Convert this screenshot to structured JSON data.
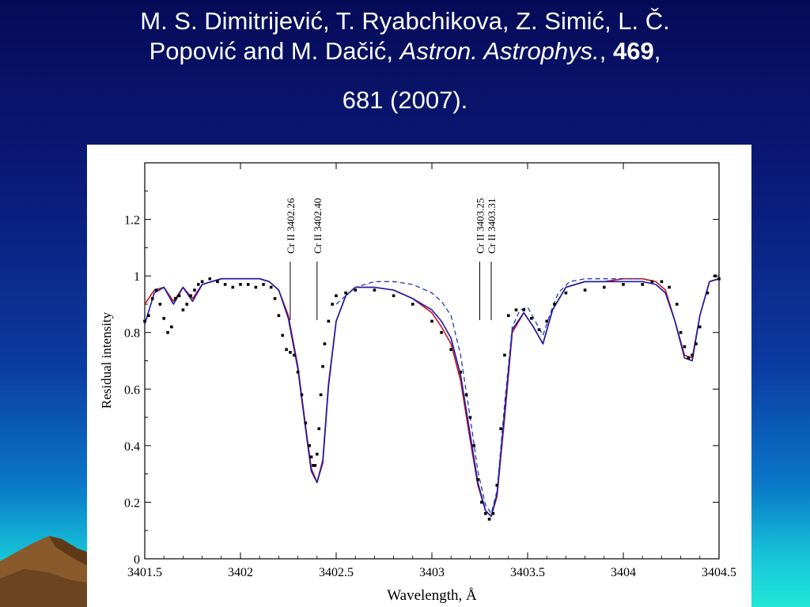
{
  "slide": {
    "title_line1": "M. S. Dimitrijević, T. Ryabchikova, Z. Simić, L. Č.",
    "title_line2_authors": "Popović and  M. Dačić,",
    "journal": "Astron. Astrophys.",
    "journal_after": ", ",
    "volume": "469",
    "volume_after": ",",
    "title_line3": "681 (2007)."
  },
  "colors": {
    "background_top": "#060b58",
    "background_bottom": "#22e6d6",
    "observed": "#000000",
    "model_red": "#c8141e",
    "model_blue": "#1a1aa8",
    "model_blue_dashed": "#1c3cb4"
  },
  "chart_data": {
    "type": "line",
    "xlabel": "Wavelength, Å",
    "ylabel": "Residual intensity",
    "xlim": [
      3401.5,
      3404.5
    ],
    "ylim": [
      0,
      1.4
    ],
    "xticks": [
      3401.5,
      3402,
      3402.5,
      3403,
      3403.5,
      3404,
      3404.5
    ],
    "xtick_labels": [
      "3401.5",
      "3402",
      "3402.5",
      "3403",
      "3403.5",
      "3404",
      "3404.5"
    ],
    "yticks": [
      0,
      0.2,
      0.4,
      0.6,
      0.8,
      1,
      1.2
    ],
    "ytick_labels": [
      "0",
      "0.2",
      "0.4",
      "0.6",
      "0.8",
      "1",
      "1.2"
    ],
    "grid": false,
    "line_markers": [
      {
        "label": "Cr II 3402.26",
        "x": 3402.26
      },
      {
        "label": "Cr II 3402.40",
        "x": 3402.4
      },
      {
        "label": "Cr II 3403.25",
        "x": 3403.25
      },
      {
        "label": "Cr II 3403.31",
        "x": 3403.31
      }
    ],
    "series": [
      {
        "style": "points",
        "color": "#000000",
        "x": [
          3401.5,
          3401.52,
          3401.54,
          3401.56,
          3401.58,
          3401.6,
          3401.62,
          3401.64,
          3401.66,
          3401.68,
          3401.7,
          3401.72,
          3401.74,
          3401.76,
          3401.78,
          3401.8,
          3401.84,
          3401.88,
          3401.92,
          3401.96,
          3402.0,
          3402.04,
          3402.08,
          3402.12,
          3402.16,
          3402.18,
          3402.2,
          3402.22,
          3402.24,
          3402.26,
          3402.28,
          3402.3,
          3402.32,
          3402.34,
          3402.36,
          3402.37,
          3402.38,
          3402.39,
          3402.4,
          3402.41,
          3402.42,
          3402.43,
          3402.44,
          3402.46,
          3402.48,
          3402.5,
          3402.55,
          3402.6,
          3402.7,
          3402.8,
          3402.9,
          3403.0,
          3403.05,
          3403.1,
          3403.15,
          3403.18,
          3403.2,
          3403.22,
          3403.24,
          3403.26,
          3403.28,
          3403.3,
          3403.32,
          3403.34,
          3403.36,
          3403.38,
          3403.4,
          3403.44,
          3403.48,
          3403.52,
          3403.56,
          3403.6,
          3403.64,
          3403.7,
          3403.8,
          3403.9,
          3404.0,
          3404.1,
          3404.15,
          3404.2,
          3404.24,
          3404.28,
          3404.3,
          3404.32,
          3404.34,
          3404.36,
          3404.38,
          3404.4,
          3404.44,
          3404.48,
          3404.5
        ],
        "values": [
          0.84,
          0.86,
          0.92,
          0.95,
          0.9,
          0.85,
          0.8,
          0.82,
          0.92,
          0.93,
          0.88,
          0.9,
          0.93,
          0.95,
          0.97,
          0.98,
          0.99,
          0.98,
          0.97,
          0.96,
          0.97,
          0.97,
          0.96,
          0.97,
          0.96,
          0.92,
          0.86,
          0.79,
          0.74,
          0.73,
          0.72,
          0.66,
          0.58,
          0.48,
          0.4,
          0.36,
          0.33,
          0.33,
          0.37,
          0.46,
          0.58,
          0.68,
          0.76,
          0.84,
          0.9,
          0.93,
          0.94,
          0.95,
          0.95,
          0.93,
          0.9,
          0.84,
          0.8,
          0.74,
          0.66,
          0.58,
          0.5,
          0.4,
          0.28,
          0.2,
          0.16,
          0.14,
          0.16,
          0.26,
          0.46,
          0.72,
          0.86,
          0.88,
          0.88,
          0.85,
          0.81,
          0.84,
          0.9,
          0.94,
          0.95,
          0.96,
          0.97,
          0.97,
          0.98,
          0.98,
          0.96,
          0.9,
          0.8,
          0.75,
          0.71,
          0.72,
          0.76,
          0.82,
          0.94,
          1.0,
          0.99
        ]
      },
      {
        "style": "solid",
        "color": "#c8141e",
        "x": [
          3401.5,
          3401.55,
          3401.6,
          3401.65,
          3401.7,
          3401.75,
          3401.8,
          3401.9,
          3402.0,
          3402.1,
          3402.15,
          3402.2,
          3402.25,
          3402.3,
          3402.34,
          3402.37,
          3402.4,
          3402.43,
          3402.46,
          3402.5,
          3402.55,
          3402.6,
          3402.7,
          3402.8,
          3402.9,
          3403.0,
          3403.05,
          3403.1,
          3403.15,
          3403.2,
          3403.24,
          3403.28,
          3403.31,
          3403.34,
          3403.38,
          3403.42,
          3403.48,
          3403.53,
          3403.58,
          3403.63,
          3403.7,
          3403.8,
          3403.9,
          3404.0,
          3404.1,
          3404.17,
          3404.22,
          3404.27,
          3404.32,
          3404.36,
          3404.4,
          3404.45,
          3404.5
        ],
        "values": [
          0.9,
          0.95,
          0.96,
          0.91,
          0.96,
          0.92,
          0.97,
          0.99,
          0.99,
          0.99,
          0.98,
          0.95,
          0.86,
          0.68,
          0.47,
          0.32,
          0.27,
          0.35,
          0.62,
          0.84,
          0.93,
          0.96,
          0.96,
          0.95,
          0.92,
          0.87,
          0.82,
          0.76,
          0.63,
          0.42,
          0.26,
          0.17,
          0.15,
          0.22,
          0.5,
          0.8,
          0.87,
          0.82,
          0.76,
          0.88,
          0.96,
          0.98,
          0.98,
          0.99,
          0.99,
          0.98,
          0.95,
          0.84,
          0.72,
          0.71,
          0.86,
          0.98,
          0.99
        ]
      },
      {
        "style": "solid",
        "color": "#1a1aa8",
        "x": [
          3401.5,
          3401.55,
          3401.6,
          3401.65,
          3401.7,
          3401.75,
          3401.8,
          3401.9,
          3402.0,
          3402.1,
          3402.15,
          3402.2,
          3402.25,
          3402.3,
          3402.34,
          3402.37,
          3402.4,
          3402.43,
          3402.46,
          3402.5,
          3402.55,
          3402.6,
          3402.7,
          3402.8,
          3402.9,
          3403.0,
          3403.05,
          3403.1,
          3403.15,
          3403.2,
          3403.24,
          3403.28,
          3403.31,
          3403.34,
          3403.38,
          3403.42,
          3403.48,
          3403.53,
          3403.58,
          3403.63,
          3403.7,
          3403.8,
          3403.9,
          3404.0,
          3404.1,
          3404.17,
          3404.22,
          3404.27,
          3404.32,
          3404.36,
          3404.4,
          3404.45,
          3404.5
        ],
        "values": [
          0.83,
          0.94,
          0.96,
          0.9,
          0.96,
          0.91,
          0.97,
          0.99,
          0.99,
          0.99,
          0.98,
          0.95,
          0.85,
          0.67,
          0.46,
          0.31,
          0.27,
          0.34,
          0.61,
          0.84,
          0.93,
          0.96,
          0.96,
          0.95,
          0.92,
          0.88,
          0.84,
          0.78,
          0.65,
          0.44,
          0.27,
          0.17,
          0.15,
          0.23,
          0.52,
          0.81,
          0.87,
          0.82,
          0.76,
          0.88,
          0.96,
          0.98,
          0.98,
          0.98,
          0.98,
          0.97,
          0.94,
          0.84,
          0.71,
          0.7,
          0.86,
          0.98,
          0.99
        ]
      },
      {
        "style": "dashed",
        "color": "#1c3cb4",
        "x": [
          3402.5,
          3402.6,
          3402.7,
          3402.8,
          3402.9,
          3403.0,
          3403.05,
          3403.1,
          3403.15,
          3403.2,
          3403.24,
          3403.28,
          3403.31,
          3403.34,
          3403.38,
          3403.42,
          3403.46,
          3403.5,
          3403.54,
          3403.58,
          3403.62,
          3403.66,
          3403.72,
          3403.8,
          3403.9,
          3404.0,
          3404.1
        ],
        "values": [
          0.9,
          0.96,
          0.98,
          0.98,
          0.97,
          0.94,
          0.91,
          0.86,
          0.72,
          0.5,
          0.31,
          0.19,
          0.16,
          0.24,
          0.55,
          0.82,
          0.88,
          0.89,
          0.84,
          0.79,
          0.87,
          0.94,
          0.98,
          0.99,
          0.99,
          0.99,
          0.99
        ]
      }
    ]
  }
}
